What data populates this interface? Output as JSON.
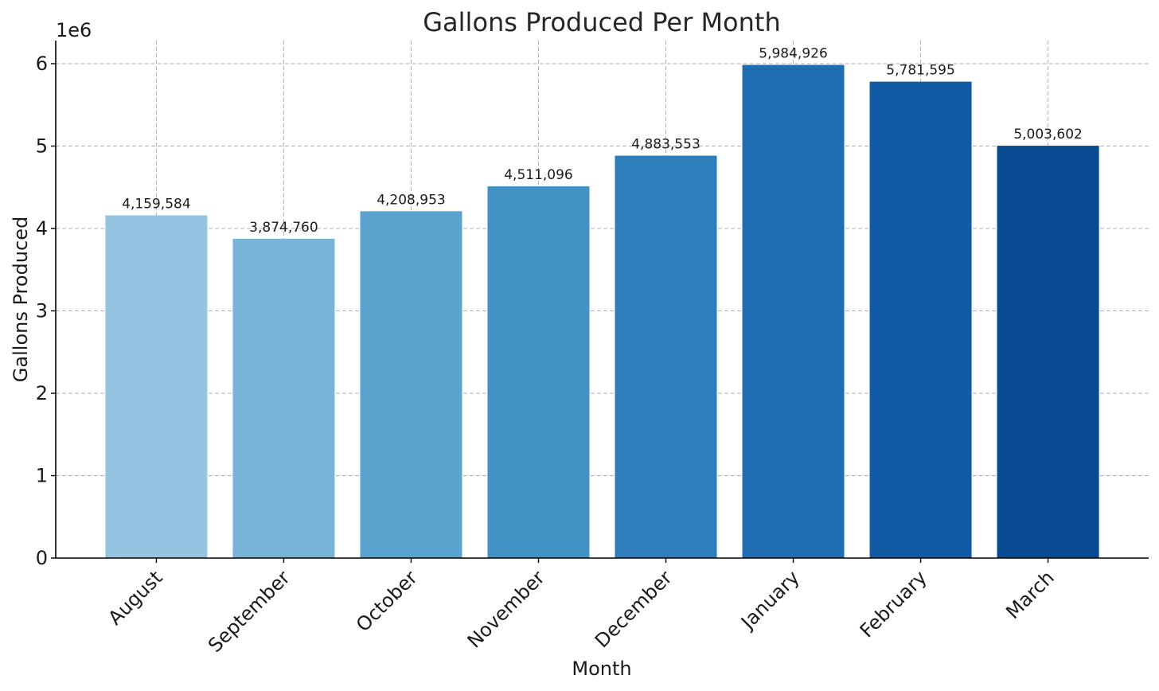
{
  "chart_data": {
    "type": "bar",
    "title": "Gallons Produced Per Month",
    "xlabel": "Month",
    "ylabel": "Gallons Produced",
    "y_offset_label": "1e6",
    "categories": [
      "August",
      "September",
      "October",
      "November",
      "December",
      "January",
      "February",
      "March"
    ],
    "values": [
      4159584,
      3874760,
      4208953,
      4511096,
      4883553,
      5984926,
      5781595,
      5003602
    ],
    "value_labels": [
      "4,159,584",
      "3,874,760",
      "4,208,953",
      "4,511,096",
      "4,883,553",
      "5,984,926",
      "5,781,595",
      "5,003,602"
    ],
    "colors": [
      "#94c4df",
      "#77b4d7",
      "#5ba3cf",
      "#4292c6",
      "#2f7ebc",
      "#1f6eb3",
      "#105ba4",
      "#084a91"
    ],
    "ylim": [
      0,
      6280000
    ],
    "yticks": [
      0,
      1,
      2,
      3,
      4,
      5,
      6
    ],
    "ytick_scale": 1000000,
    "grid": true,
    "legend": "none"
  }
}
